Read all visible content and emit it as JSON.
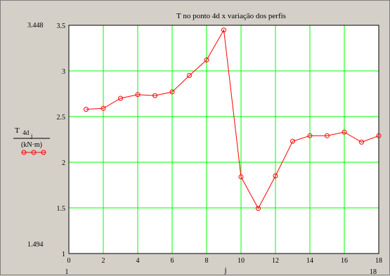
{
  "chart_data": {
    "type": "line",
    "title": "T no ponto 4d x variação dos perfis",
    "ylabel_main": "T",
    "ylabel_sub": "4d",
    "ylabel_subsub": "j",
    "ylabel_unit": "(kN·m)",
    "xlabel": "j",
    "xlim": [
      0,
      18
    ],
    "ylim": [
      1,
      3.5
    ],
    "x_ticks": [
      0,
      2,
      4,
      6,
      8,
      10,
      12,
      14,
      16,
      18
    ],
    "y_ticks": [
      1,
      1.5,
      2,
      2.5,
      3,
      3.5
    ],
    "x_tick_labels": [
      "0",
      "2",
      "4",
      "6",
      "8",
      "10",
      "12",
      "14",
      "16",
      "18"
    ],
    "y_tick_labels": [
      "1",
      "1.5",
      "2",
      "2.5",
      "3",
      "3.5"
    ],
    "ymax_readout": "3.448",
    "ymin_readout": "1.494",
    "xmin_readout": "1",
    "xmax_readout": "18",
    "grid": true,
    "grid_color": "#00ff00",
    "line_color": "#ff0000",
    "series": [
      {
        "x": [
          1,
          2,
          3,
          4,
          5,
          6,
          7,
          8,
          9,
          10,
          11,
          12,
          13,
          14,
          15,
          16,
          17,
          18
        ],
        "values": [
          2.58,
          2.59,
          2.7,
          2.74,
          2.73,
          2.77,
          2.95,
          3.12,
          3.448,
          1.84,
          1.494,
          1.85,
          2.23,
          2.29,
          2.29,
          2.33,
          2.22,
          2.29
        ]
      }
    ]
  }
}
